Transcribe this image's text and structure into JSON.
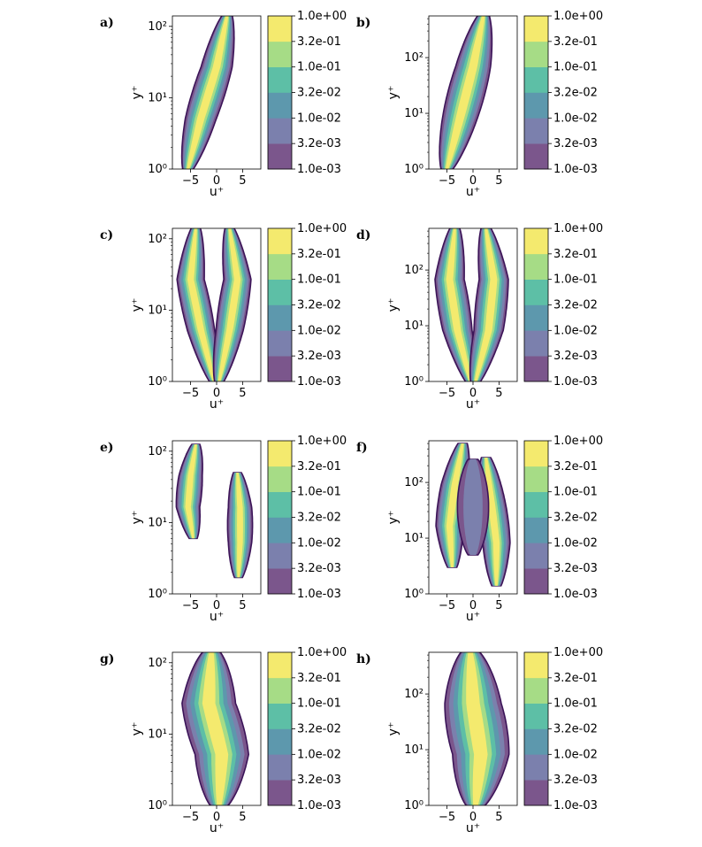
{
  "chart_data": {
    "type": "contour",
    "levels": [
      "1.0e-03",
      "3.2e-03",
      "1.0e-02",
      "3.2e-02",
      "1.0e-01",
      "3.2e-01",
      "1.0e+00"
    ],
    "level_colors": [
      "#7b568c",
      "#7b80ad",
      "#5d98ad",
      "#5dbfa6",
      "#a6dc86",
      "#f4ea6e"
    ],
    "outline_color": "#3b1458",
    "xlabel": "u⁺",
    "ylabel": "y⁺",
    "xticks": [
      "−5",
      "0",
      "5"
    ],
    "xlim": [
      -8.5,
      8.5
    ],
    "panels": [
      {
        "label": "a)",
        "yscale": "log",
        "ylim": [
          1,
          140
        ],
        "yticks": [
          {
            "v": 1,
            "t": "10⁰"
          },
          {
            "v": 10,
            "t": "10¹"
          },
          {
            "v": 100,
            "t": "10²"
          }
        ],
        "blobs": [
          {
            "cx": [
              -5.5,
              -3,
              0,
              2
            ],
            "ymin": 1,
            "ymax": 140,
            "w": 3.2,
            "peak": 6,
            "hollow": 3
          }
        ]
      },
      {
        "label": "b)",
        "yscale": "log",
        "ylim": [
          1,
          560
        ],
        "yticks": [
          {
            "v": 1,
            "t": "10⁰"
          },
          {
            "v": 10,
            "t": "10¹"
          },
          {
            "v": 100,
            "t": "10²"
          }
        ],
        "blobs": [
          {
            "cx": [
              -5,
              -2.5,
              0,
              2
            ],
            "ymin": 1,
            "ymax": 560,
            "w": 3.6,
            "peak": 6,
            "hollow": 3
          }
        ]
      },
      {
        "label": "c)",
        "yscale": "log",
        "ylim": [
          1,
          140
        ],
        "yticks": [
          {
            "v": 1,
            "t": "10⁰"
          },
          {
            "v": 10,
            "t": "10¹"
          },
          {
            "v": 100,
            "t": "10²"
          }
        ],
        "blobs": [
          {
            "cx": [
              -0.5,
              -3,
              -5,
              -4
            ],
            "ymin": 1,
            "ymax": 140,
            "w": 2.8,
            "peak": 6,
            "hollow": 0
          },
          {
            "cx": [
              0.5,
              2.5,
              4,
              2.5
            ],
            "ymin": 1,
            "ymax": 140,
            "w": 2.8,
            "peak": 6,
            "hollow": 0
          }
        ]
      },
      {
        "label": "d)",
        "yscale": "log",
        "ylim": [
          1,
          560
        ],
        "yticks": [
          {
            "v": 1,
            "t": "10⁰"
          },
          {
            "v": 10,
            "t": "10¹"
          },
          {
            "v": 100,
            "t": "10²"
          }
        ],
        "blobs": [
          {
            "cx": [
              -0.5,
              -3,
              -4.5,
              -3.5
            ],
            "ymin": 1,
            "ymax": 560,
            "w": 3,
            "peak": 6,
            "hollow": 0
          },
          {
            "cx": [
              0.5,
              3,
              4,
              2.5
            ],
            "ymin": 1,
            "ymax": 560,
            "w": 3,
            "peak": 6,
            "hollow": 0
          }
        ]
      },
      {
        "label": "e)",
        "yscale": "log",
        "ylim": [
          1,
          140
        ],
        "yticks": [
          {
            "v": 1,
            "t": "10⁰"
          },
          {
            "v": 10,
            "t": "10¹"
          },
          {
            "v": 100,
            "t": "10²"
          }
        ],
        "blobs": [
          {
            "cx": [
              -4.5,
              -5.5,
              -5,
              -4
            ],
            "ymin": 6,
            "ymax": 125,
            "w": 2.4,
            "peak": 6,
            "hollow": 0
          },
          {
            "cx": [
              4.2,
              4.5,
              4.5,
              4
            ],
            "ymin": 1.7,
            "ymax": 50,
            "w": 2.4,
            "peak": 6,
            "hollow": 0
          }
        ]
      },
      {
        "label": "f)",
        "yscale": "log",
        "ylim": [
          1,
          560
        ],
        "yticks": [
          {
            "v": 1,
            "t": "10⁰"
          },
          {
            "v": 10,
            "t": "10¹"
          },
          {
            "v": 100,
            "t": "10²"
          }
        ],
        "blobs": [
          {
            "cx": [
              -4,
              -4.5,
              -3.5,
              -2
            ],
            "ymin": 3,
            "ymax": 500,
            "w": 2.8,
            "peak": 6,
            "hollow": 0
          },
          {
            "cx": [
              4.5,
              4.5,
              3.5,
              2.5
            ],
            "ymin": 1.4,
            "ymax": 280,
            "w": 2.8,
            "peak": 6,
            "hollow": 0
          },
          {
            "cx": [
              0,
              0,
              0,
              0
            ],
            "ymin": 5,
            "ymax": 260,
            "w": 3,
            "peak": 2,
            "hollow": 0
          }
        ]
      },
      {
        "label": "g)",
        "yscale": "log",
        "ylim": [
          1,
          140
        ],
        "yticks": [
          {
            "v": 1,
            "t": "10⁰"
          },
          {
            "v": 10,
            "t": "10¹"
          },
          {
            "v": 100,
            "t": "10²"
          }
        ],
        "blobs": [
          {
            "cx": [
              0.5,
              1,
              -1.5,
              -1
            ],
            "ymin": 1,
            "ymax": 140,
            "w": 5.5,
            "peak": 6,
            "hollow": 0
          }
        ]
      },
      {
        "label": "h)",
        "yscale": "log",
        "ylim": [
          1,
          560
        ],
        "yticks": [
          {
            "v": 1,
            "t": "10⁰"
          },
          {
            "v": 10,
            "t": "10¹"
          },
          {
            "v": 100,
            "t": "10²"
          }
        ],
        "blobs": [
          {
            "cx": [
              0.5,
              1.5,
              0,
              -0.5
            ],
            "ymin": 1,
            "ymax": 560,
            "w": 5.8,
            "peak": 6,
            "hollow": 0
          }
        ]
      }
    ]
  }
}
